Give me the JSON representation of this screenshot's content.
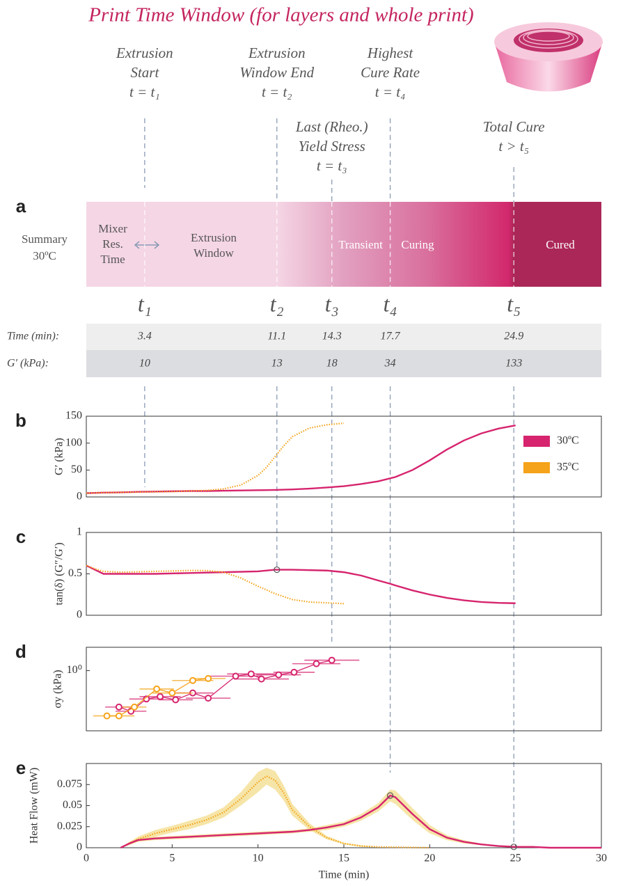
{
  "title": "Print Time Window (for layers and whole print)",
  "events": [
    {
      "lines": [
        "Extrusion",
        "Start",
        "t = t₁"
      ]
    },
    {
      "lines": [
        "Extrusion",
        "Window End",
        "t = t₂"
      ]
    },
    {
      "lines": [
        "Last (Rheo.)",
        "Yield Stress",
        "t = t₃"
      ]
    },
    {
      "lines": [
        "Highest",
        "Cure Rate",
        "t = t₄"
      ]
    },
    {
      "lines": [
        "Total Cure",
        "t > t₅"
      ]
    }
  ],
  "panel_labels": [
    "a",
    "b",
    "c",
    "d",
    "e"
  ],
  "summary": {
    "label": [
      "Summary",
      "30ºC"
    ],
    "regions": [
      [
        "Mixer",
        "Res.",
        "Time"
      ],
      [
        "Extrusion",
        "Window"
      ],
      [
        "Transient"
      ],
      [
        "Curing"
      ],
      [
        "Cured"
      ]
    ]
  },
  "t_labels": [
    "t₁",
    "t₂",
    "t₃",
    "t₄",
    "t₅"
  ],
  "table": {
    "rows": [
      {
        "label": "Time (min):",
        "values": [
          3.4,
          11.1,
          14.3,
          17.7,
          24.9
        ]
      },
      {
        "label": "G′ (kPa):",
        "values": [
          10,
          13,
          18,
          34,
          133
        ]
      }
    ]
  },
  "chart_data": [
    {
      "type": "line",
      "ylabel": "G′ (kPa)",
      "xlim": [
        0,
        30
      ],
      "ylim": [
        0,
        150
      ],
      "yticks": [
        0,
        50,
        100,
        150
      ],
      "legend": "right",
      "series": [
        {
          "name": "30ºC",
          "color": "#d6246e",
          "style": "solid",
          "x": [
            0,
            1,
            2,
            3,
            4,
            5,
            6,
            7,
            8,
            9,
            10,
            11,
            12,
            13,
            14,
            15,
            16,
            17,
            18,
            19,
            20,
            21,
            22,
            23,
            24,
            25
          ],
          "values": [
            7,
            8,
            8.5,
            9.5,
            10,
            10.5,
            11,
            11,
            11.5,
            12,
            12.5,
            13,
            14,
            15.5,
            17.5,
            20,
            24,
            29,
            37,
            50,
            68,
            88,
            105,
            118,
            127,
            133
          ]
        },
        {
          "name": "35ºC",
          "color": "#f5a31a",
          "style": "dotted",
          "x": [
            0,
            1,
            2,
            3,
            4,
            5,
            6,
            7,
            8,
            9,
            10,
            10.5,
            11,
            11.5,
            12,
            13,
            14,
            15
          ],
          "values": [
            7,
            8,
            8.5,
            9,
            9.5,
            10,
            11,
            12,
            15,
            22,
            40,
            55,
            75,
            95,
            112,
            128,
            134,
            137
          ]
        }
      ]
    },
    {
      "type": "line",
      "ylabel": "tan(δ) (G″/G′)",
      "xlim": [
        0,
        30
      ],
      "ylim": [
        0,
        1
      ],
      "yticks": [
        0,
        0.5,
        1
      ],
      "series": [
        {
          "color": "#d6246e",
          "style": "solid",
          "x": [
            0,
            0.5,
            1,
            2,
            4,
            6,
            8,
            10,
            11,
            12,
            14,
            15,
            16,
            17,
            17.7,
            18,
            19,
            20,
            21,
            22,
            23,
            24,
            25
          ],
          "values": [
            0.6,
            0.55,
            0.5,
            0.5,
            0.5,
            0.51,
            0.52,
            0.53,
            0.55,
            0.55,
            0.54,
            0.52,
            0.48,
            0.42,
            0.38,
            0.36,
            0.3,
            0.25,
            0.21,
            0.18,
            0.16,
            0.15,
            0.145
          ]
        },
        {
          "color": "#f5a31a",
          "style": "dotted",
          "x": [
            0,
            0.5,
            1,
            2,
            4,
            6,
            7,
            8,
            9,
            10,
            11,
            12,
            13,
            14,
            15
          ],
          "values": [
            0.6,
            0.56,
            0.53,
            0.52,
            0.53,
            0.54,
            0.54,
            0.52,
            0.45,
            0.35,
            0.26,
            0.19,
            0.16,
            0.15,
            0.14
          ]
        }
      ],
      "markers": [
        {
          "x": 11.1,
          "y": 0.55
        }
      ]
    },
    {
      "type": "scatter",
      "ylabel": "σy (kPa)",
      "xlim": [
        0,
        30
      ],
      "ylim": [
        0.22,
        1.8
      ],
      "log_y": true,
      "yticks": [
        {
          "value": 1,
          "label": "10⁰"
        }
      ],
      "series": [
        {
          "color": "#d6246e",
          "x": [
            1.9,
            2.6,
            3.5,
            4.3,
            5.2,
            6.2,
            7.1,
            8.7,
            9.6,
            10.2,
            11.2,
            12.1,
            13.4,
            14.3
          ],
          "values": [
            0.4,
            0.36,
            0.49,
            0.52,
            0.48,
            0.57,
            0.5,
            0.87,
            0.92,
            0.81,
            0.9,
            0.96,
            1.19,
            1.3
          ],
          "xerr": [
            0.8,
            0.9,
            1,
            1.2,
            1,
            1.2,
            1.3,
            1.5,
            1.4,
            1.6,
            1.3,
            1.2,
            1.4,
            1.6
          ]
        },
        {
          "color": "#f5a31a",
          "x": [
            1.2,
            1.9,
            2.8,
            4.1,
            5.0,
            6.2,
            7.1
          ],
          "values": [
            0.32,
            0.32,
            0.4,
            0.63,
            0.57,
            0.78,
            0.82
          ],
          "xerr": [
            0.8,
            0.9,
            0.7,
            1,
            1.2,
            1.2,
            1
          ]
        }
      ]
    },
    {
      "type": "line",
      "ylabel": "Heat Flow (mW)",
      "xlabel": "Time (min)",
      "xlim": [
        0,
        30
      ],
      "ylim": [
        0,
        0.1
      ],
      "yticks": [
        0,
        0.025,
        0.05,
        0.075
      ],
      "xticks": [
        0,
        5,
        10,
        15,
        20,
        25,
        30
      ],
      "series": [
        {
          "color": "#f5a31a",
          "style": "dotted",
          "band_color": "#f1d77a",
          "x": [
            2,
            3,
            4,
            5,
            6,
            7,
            8,
            9,
            10,
            10.5,
            11,
            11.5,
            12,
            13,
            14,
            15,
            16,
            17,
            20
          ],
          "values": [
            0,
            0.01,
            0.017,
            0.022,
            0.027,
            0.033,
            0.042,
            0.058,
            0.078,
            0.085,
            0.08,
            0.065,
            0.045,
            0.025,
            0.012,
            0.005,
            0.002,
            0.001,
            0
          ],
          "err": [
            0,
            0.003,
            0.004,
            0.004,
            0.005,
            0.005,
            0.006,
            0.008,
            0.012,
            0.01,
            0.011,
            0.009,
            0.007,
            0.004,
            0.002,
            0.001,
            0.001,
            0,
            0
          ]
        },
        {
          "color": "#d6246e",
          "style": "solid",
          "band_color": "#f1d77a",
          "x": [
            2,
            2.5,
            3,
            4,
            5,
            6,
            8,
            10,
            12,
            13,
            14,
            15,
            16,
            17,
            17.7,
            18,
            19,
            20,
            21,
            22,
            23,
            24,
            25,
            26,
            27,
            30
          ],
          "values": [
            0,
            0.005,
            0.009,
            0.011,
            0.012,
            0.013,
            0.015,
            0.017,
            0.019,
            0.021,
            0.024,
            0.028,
            0.036,
            0.048,
            0.062,
            0.06,
            0.04,
            0.022,
            0.012,
            0.007,
            0.004,
            0.002,
            0.001,
            0.001,
            0,
            0
          ],
          "err": [
            0,
            0.002,
            0.002,
            0.002,
            0.002,
            0.002,
            0.002,
            0.002,
            0.002,
            0.002,
            0.003,
            0.003,
            0.004,
            0.005,
            0.007,
            0.008,
            0.007,
            0.005,
            0.003,
            0.002,
            0.001,
            0.001,
            0.001,
            0.001,
            0,
            0
          ]
        }
      ],
      "markers": [
        {
          "x": 17.7,
          "y": 0.062
        },
        {
          "x": 24.9,
          "y": 0.001
        }
      ]
    }
  ]
}
